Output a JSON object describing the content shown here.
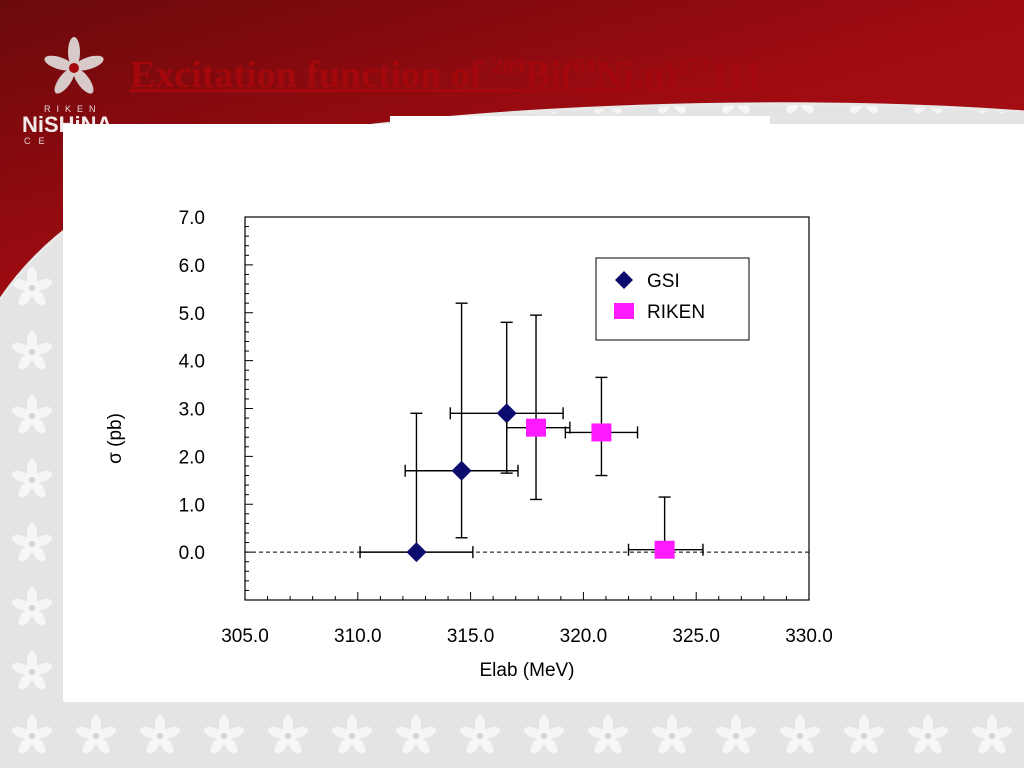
{
  "slide": {
    "title_parts": {
      "a": "Excitation function of ",
      "b": "209",
      "c": "Bi(",
      "d": "64",
      "e": "Ni,n)",
      "f": "272",
      "g": "111"
    },
    "logo": {
      "small_top": "RIKEN",
      "name": "NiSHiNA",
      "small_bottom": "CE"
    },
    "colors": {
      "header_red": "#9e0b10",
      "title_red": "#a5080c",
      "gsi": "#0c0c6e",
      "riken": "#ff1aff"
    }
  },
  "chart_data": {
    "type": "scatter",
    "xlabel": "Elab (MeV)",
    "ylabel": "σ (pb)",
    "xlim": [
      305,
      330
    ],
    "ylim": [
      -1,
      7
    ],
    "x_ticks": [
      305,
      310,
      315,
      320,
      325,
      330
    ],
    "y_ticks": [
      0,
      1,
      2,
      3,
      4,
      5,
      6,
      7
    ],
    "x_tick_labels": [
      "305.0",
      "310.0",
      "315.0",
      "320.0",
      "325.0",
      "330.0"
    ],
    "y_tick_labels": [
      "0.0",
      "1.0",
      "2.0",
      "3.0",
      "4.0",
      "5.0",
      "6.0",
      "7.0"
    ],
    "reference_line": {
      "y": 0,
      "style": "dashed"
    },
    "legend_position": "top-right",
    "series": [
      {
        "name": "GSI",
        "marker": "diamond",
        "color": "#0c0c6e",
        "points": [
          {
            "x": 312.6,
            "y": 0.0,
            "x_err": [
              310.1,
              315.1
            ],
            "y_err": [
              0.0,
              2.9
            ]
          },
          {
            "x": 314.6,
            "y": 1.7,
            "x_err": [
              312.1,
              317.1
            ],
            "y_err": [
              0.3,
              5.2
            ]
          },
          {
            "x": 316.6,
            "y": 2.9,
            "x_err": [
              314.1,
              319.1
            ],
            "y_err": [
              1.65,
              4.8
            ]
          }
        ]
      },
      {
        "name": "RIKEN",
        "marker": "square",
        "color": "#ff1aff",
        "points": [
          {
            "x": 317.9,
            "y": 2.6,
            "x_err": [
              316.6,
              319.4
            ],
            "y_err": [
              1.1,
              4.95
            ]
          },
          {
            "x": 320.8,
            "y": 2.5,
            "x_err": [
              319.2,
              322.4
            ],
            "y_err": [
              1.6,
              3.65
            ]
          },
          {
            "x": 323.6,
            "y": 0.05,
            "x_err": [
              322.0,
              325.3
            ],
            "y_err": [
              0.0,
              1.15
            ]
          }
        ]
      }
    ]
  }
}
